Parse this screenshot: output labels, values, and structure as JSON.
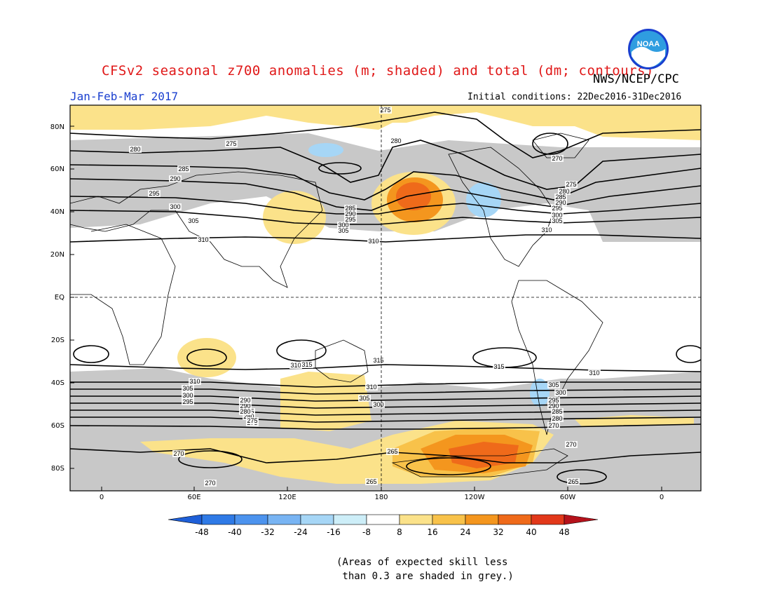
{
  "title": "CFSv2 seasonal z700 anomalies (m; shaded) and total (dm; contours)",
  "agency": "NWS/NCEP/CPC",
  "period": "Jan-Feb-Mar 2017",
  "initial_conditions": "Initial conditions: 22Dec2016-31Dec2016",
  "logo_text": "NOAA",
  "lat_labels": [
    "80N",
    "60N",
    "40N",
    "20N",
    "EQ",
    "20S",
    "40S",
    "60S",
    "80S"
  ],
  "lon_labels": [
    "0",
    "60E",
    "120E",
    "180",
    "120W",
    "60W",
    "0"
  ],
  "colorbar": {
    "ticks": [
      "-48",
      "-40",
      "-32",
      "-24",
      "-16",
      "-8",
      "8",
      "16",
      "24",
      "32",
      "40",
      "48"
    ],
    "colors": [
      "#1e5fd8",
      "#2f7ae6",
      "#4c93ee",
      "#78b4f3",
      "#a6d6f6",
      "#cdeef8",
      "#ffffff",
      "#fbe28a",
      "#f8c24a",
      "#f4961e",
      "#ef6a1a",
      "#e2381a",
      "#b5121b"
    ]
  },
  "contour_labels": [
    "275",
    "275",
    "280",
    "285",
    "290",
    "295",
    "300",
    "305",
    "310",
    "310",
    "285",
    "290",
    "295",
    "300",
    "305",
    "310",
    "280",
    "270",
    "275",
    "280",
    "285",
    "290",
    "295",
    "300",
    "305",
    "310",
    "315",
    "310",
    "305",
    "300",
    "295",
    "290",
    "285",
    "280",
    "275",
    "270",
    "265",
    "265",
    "270",
    "270",
    "265",
    "270",
    "315",
    "310",
    "305",
    "300",
    "295",
    "315",
    "310",
    "305",
    "300",
    "295",
    "290",
    "285",
    "280",
    "275",
    "290",
    "280"
  ],
  "note": "(Areas of expected skill less\n than 0.3 are shaded in grey.)"
}
